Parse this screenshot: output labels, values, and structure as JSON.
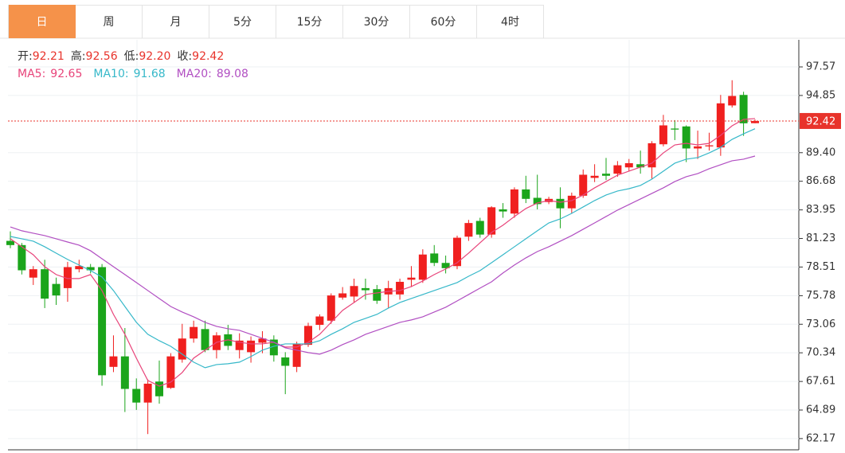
{
  "tabs": {
    "items": [
      "日",
      "周",
      "月",
      "5分",
      "15分",
      "30分",
      "60分",
      "4时"
    ],
    "active": 0
  },
  "chart_data": {
    "type": "candlestick",
    "summary": {
      "labels": [
        "开:",
        "高:",
        "低:",
        "收:"
      ],
      "values": [
        92.21,
        92.56,
        92.2,
        92.42
      ],
      "value_labels": [
        "92.21",
        "92.56",
        "92.20",
        "92.42"
      ]
    },
    "open": [
      81.0,
      80.6,
      77.5,
      78.3,
      76.9,
      76.5,
      78.3,
      78.5,
      78.5,
      69.0,
      70.0,
      66.9,
      65.6,
      67.6,
      67.0,
      69.7,
      71.7,
      72.6,
      70.6,
      72.1,
      70.6,
      70.4,
      71.3,
      71.6,
      69.9,
      69.0,
      71.1,
      73.0,
      73.4,
      75.6,
      75.7,
      76.5,
      76.4,
      75.9,
      75.9,
      77.3,
      77.3,
      79.8,
      78.9,
      78.6,
      81.4,
      82.9,
      81.6,
      84.0,
      83.6,
      85.9,
      85.1,
      84.7,
      85.0,
      84.1,
      85.3,
      87.0,
      87.4,
      87.4,
      88.0,
      88.3,
      88.0,
      90.2,
      91.7,
      91.9,
      89.8,
      90.0,
      89.9,
      93.9,
      94.9,
      92.21
    ],
    "high": [
      81.9,
      80.8,
      78.6,
      79.2,
      77.5,
      79.0,
      79.2,
      78.8,
      78.8,
      72.0,
      72.7,
      67.9,
      67.8,
      69.6,
      70.3,
      73.1,
      73.4,
      73.4,
      72.3,
      73.0,
      72.2,
      71.9,
      72.4,
      72.0,
      70.4,
      71.4,
      73.2,
      74.0,
      76.0,
      76.6,
      77.4,
      77.4,
      76.8,
      77.2,
      77.4,
      78.6,
      80.2,
      80.6,
      79.6,
      81.5,
      83.0,
      83.2,
      84.3,
      84.6,
      86.1,
      87.2,
      87.3,
      85.2,
      86.1,
      85.6,
      87.8,
      88.3,
      88.9,
      88.6,
      88.8,
      89.6,
      90.5,
      93.0,
      92.5,
      92.0,
      91.5,
      91.3,
      94.9,
      96.3,
      95.2,
      92.56
    ],
    "low": [
      80.3,
      77.8,
      76.8,
      74.6,
      74.9,
      75.2,
      78.0,
      77.9,
      67.2,
      68.5,
      64.7,
      64.9,
      62.6,
      65.5,
      66.9,
      69.4,
      71.3,
      70.4,
      69.8,
      70.6,
      69.8,
      69.4,
      70.3,
      69.5,
      66.4,
      68.5,
      70.9,
      72.5,
      73.1,
      75.4,
      75.1,
      75.4,
      75.0,
      74.6,
      75.4,
      76.6,
      77.0,
      78.6,
      77.9,
      78.3,
      81.0,
      81.3,
      81.3,
      83.2,
      83.2,
      84.6,
      84.0,
      84.5,
      82.2,
      83.6,
      85.1,
      86.6,
      86.8,
      87.1,
      87.6,
      87.4,
      86.9,
      90.0,
      90.6,
      88.5,
      88.8,
      89.6,
      89.1,
      93.7,
      91.0,
      92.2
    ],
    "close": [
      80.6,
      78.2,
      78.3,
      75.5,
      75.8,
      78.5,
      78.6,
      78.2,
      68.2,
      70.0,
      66.9,
      65.6,
      67.4,
      66.2,
      70.0,
      71.7,
      72.8,
      70.6,
      72.0,
      71.0,
      71.5,
      71.5,
      71.7,
      70.1,
      69.1,
      71.2,
      72.9,
      73.8,
      75.8,
      76.0,
      76.7,
      76.3,
      75.3,
      76.5,
      77.1,
      77.5,
      79.7,
      78.9,
      78.4,
      81.3,
      82.7,
      81.6,
      84.2,
      83.8,
      85.9,
      85.0,
      84.5,
      85.0,
      84.1,
      85.3,
      87.3,
      87.2,
      87.2,
      88.2,
      88.4,
      88.0,
      90.3,
      92.0,
      91.6,
      89.8,
      90.0,
      90.1,
      94.1,
      94.8,
      92.2,
      92.42
    ],
    "up_color": "#f0201f",
    "down_color": "#1ba51b",
    "series": [
      {
        "name": "MA5:",
        "color": "#e8447a",
        "values": [
          81.2,
          80.44,
          79.68,
          78.54,
          77.79,
          77.41,
          77.41,
          77.79,
          76.27,
          74.0,
          72.1,
          69.83,
          67.7,
          67.17,
          67.55,
          68.46,
          69.83,
          70.59,
          71.34,
          71.57,
          71.34,
          71.19,
          71.19,
          71.34,
          70.89,
          70.89,
          71.34,
          72.1,
          73.24,
          74.38,
          75.13,
          75.89,
          76.04,
          76.19,
          76.27,
          76.65,
          77.18,
          77.79,
          78.32,
          78.92,
          79.83,
          80.82,
          81.8,
          82.49,
          83.32,
          84.08,
          84.61,
          84.84,
          84.68,
          84.84,
          85.37,
          86.05,
          86.65,
          87.26,
          87.64,
          88.02,
          88.4,
          89.38,
          90.14,
          90.29,
          90.14,
          90.29,
          91.05,
          91.96,
          92.57,
          92.65
        ]
      },
      {
        "name": "MA10:",
        "color": "#36b8c9",
        "values": [
          81.42,
          81.2,
          80.97,
          80.44,
          79.83,
          79.23,
          78.7,
          78.17,
          77.56,
          76.27,
          74.75,
          73.24,
          72.1,
          71.49,
          70.96,
          70.21,
          69.45,
          68.92,
          69.22,
          69.3,
          69.45,
          69.98,
          70.59,
          70.96,
          71.19,
          71.19,
          71.19,
          71.49,
          72.1,
          72.63,
          73.24,
          73.62,
          74.0,
          74.6,
          75.13,
          75.51,
          75.89,
          76.27,
          76.65,
          77.03,
          77.63,
          78.17,
          78.92,
          79.68,
          80.44,
          81.2,
          81.96,
          82.71,
          83.09,
          83.62,
          84.23,
          84.84,
          85.37,
          85.75,
          85.97,
          86.28,
          86.88,
          87.64,
          88.4,
          88.78,
          88.93,
          89.38,
          89.91,
          90.67,
          91.2,
          91.68
        ]
      },
      {
        "name": "MA20:",
        "color": "#b14fc2",
        "values": [
          82.33,
          81.96,
          81.73,
          81.5,
          81.2,
          80.89,
          80.59,
          80.06,
          79.3,
          78.54,
          77.79,
          77.03,
          76.27,
          75.51,
          74.75,
          74.22,
          73.77,
          73.24,
          72.86,
          72.63,
          72.48,
          72.1,
          71.72,
          71.34,
          70.81,
          70.59,
          70.36,
          70.21,
          70.59,
          71.12,
          71.57,
          72.1,
          72.48,
          72.86,
          73.24,
          73.47,
          73.77,
          74.22,
          74.68,
          75.28,
          75.89,
          76.5,
          77.1,
          77.94,
          78.7,
          79.38,
          79.98,
          80.44,
          80.97,
          81.5,
          82.11,
          82.71,
          83.32,
          83.93,
          84.46,
          84.99,
          85.52,
          86.05,
          86.65,
          87.11,
          87.41,
          87.87,
          88.25,
          88.63,
          88.78,
          89.08
        ]
      }
    ],
    "ylim": [
      61.1,
      100.15
    ],
    "yticks": [
      97.57,
      94.85,
      {
        "value": 89.4,
        "label": "89.40"
      },
      86.68,
      83.95,
      81.23,
      78.51,
      75.78,
      73.06,
      70.34,
      67.61,
      64.89,
      62.17
    ],
    "grid": true
  }
}
